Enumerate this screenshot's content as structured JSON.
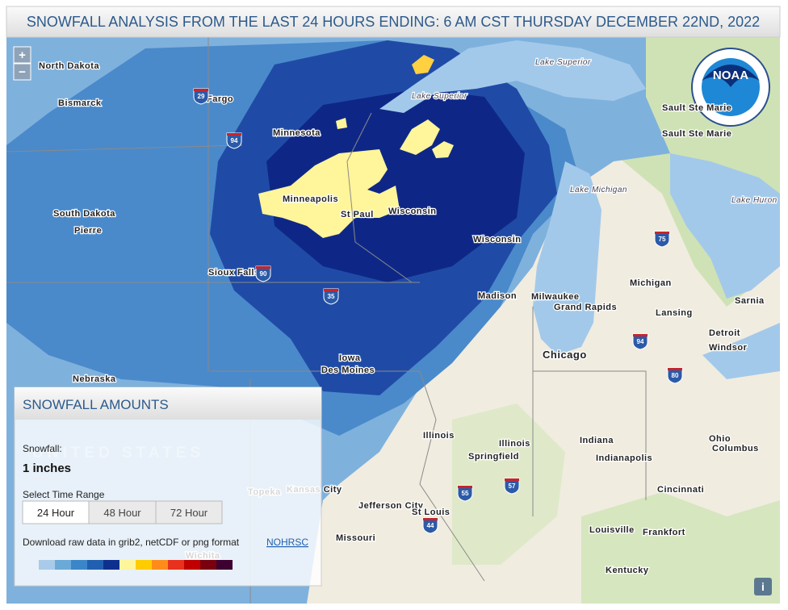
{
  "header": {
    "title": "SNOWFALL ANALYSIS FROM THE LAST 24 HOURS ENDING: 6 AM CST THURSDAY DECEMBER 22ND, 2022"
  },
  "zoom": {
    "in": "+",
    "out": "−"
  },
  "logo": "NOAA",
  "map_labels": [
    "North Dakota",
    "Bismarck",
    "Fargo",
    "Minnesota",
    "South Dakota",
    "Pierre",
    "Minneapolis",
    "St Paul",
    "Wisconsin",
    "Wisconsin",
    "Sioux Falls",
    "Iowa",
    "Des Moines",
    "Nebraska",
    "Lake Superior",
    "Lake Superior",
    "Lake Michigan",
    "Lake Huron",
    "Sault Ste Marie",
    "Sault Ste Marie",
    "Michigan",
    "Milwaukee",
    "Grand Rapids",
    "Madison",
    "Lansing",
    "Detroit",
    "Windsor",
    "Sarnia",
    "Chicago",
    "Illinois",
    "Illinois",
    "Springfield",
    "Indiana",
    "Indianapolis",
    "Ohio",
    "Columbus",
    "Cincinnati",
    "Louisville",
    "Frankfort",
    "Kentucky",
    "Missouri",
    "Jefferson City",
    "St Louis",
    "Kansas City",
    "Topeka",
    "Wichita",
    "UNITED STATES"
  ],
  "highway_shields": [
    "29",
    "94",
    "90",
    "35",
    "75",
    "94",
    "80",
    "55",
    "57",
    "44"
  ],
  "panel": {
    "title": "SNOWFALL AMOUNTS",
    "snowfall_label": "Snowfall:",
    "snowfall_value": "1 inches",
    "range_label": "Select Time Range",
    "ranges": [
      "24 Hour",
      "48 Hour",
      "72 Hour"
    ],
    "download_text": "Download raw data in grib2, netCDF or png format",
    "download_link": "NOHRSC"
  },
  "legend_colors": [
    "#a9cbe9",
    "#6aaad8",
    "#3b86c8",
    "#2160b0",
    "#0f2f8f",
    "#fff59a",
    "#ffcc00",
    "#ff8c1a",
    "#e8321e",
    "#c00000",
    "#7a0010",
    "#3d0030"
  ],
  "info": "i"
}
